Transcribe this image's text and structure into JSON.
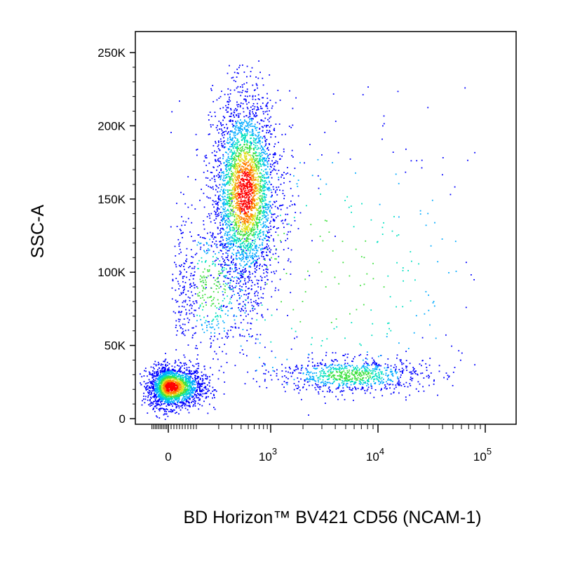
{
  "chart_data": {
    "type": "scatter",
    "style": "flow cytometry pseudocolor density dot plot",
    "xlabel": "BD Horizon™ BV421 CD56 (NCAM-1)",
    "ylabel": "SSC-A",
    "x_scale": "biexponential (linear near 0, log above ~10^2)",
    "y_scale": "linear",
    "xlim": [
      -150,
      250000
    ],
    "ylim": [
      0,
      262144
    ],
    "x_ticks": [
      {
        "value": 0,
        "label": "0"
      },
      {
        "value": 1000,
        "label": "10",
        "exp": "3"
      },
      {
        "value": 10000,
        "label": "10",
        "exp": "4"
      },
      {
        "value": 100000,
        "label": "10",
        "exp": "5"
      }
    ],
    "y_ticks": [
      {
        "value": 0,
        "label": "0"
      },
      {
        "value": 50000,
        "label": "50K"
      },
      {
        "value": 100000,
        "label": "100K"
      },
      {
        "value": 150000,
        "label": "150K"
      },
      {
        "value": 200000,
        "label": "200K"
      },
      {
        "value": 250000,
        "label": "250K"
      }
    ],
    "density_colors": [
      "#0000ff",
      "#00aaff",
      "#00e0c0",
      "#40e040",
      "#e0e020",
      "#ff8000",
      "#ff0000"
    ],
    "grid": false,
    "populations": [
      {
        "description": "CD56-negative low-SSC cluster",
        "x_center": 5,
        "y_center": 22000,
        "x_spread": 60,
        "y_spread": 7000,
        "relative_count": 0.3
      },
      {
        "description": "CD56-negative high-SSC cluster",
        "x_center": 450,
        "y_center": 155000,
        "x_spread": 0.22,
        "y_spread": 33000,
        "relative_count": 0.45
      },
      {
        "description": "CD56-positive low-SSC cluster",
        "x_center": 5500,
        "y_center": 30000,
        "x_spread": 0.35,
        "y_spread": 6000,
        "relative_count": 0.12
      },
      {
        "description": "bridge between low and high SSC",
        "x_center": 150,
        "y_center": 90000,
        "x_spread": 0.35,
        "y_spread": 25000,
        "relative_count": 0.08
      },
      {
        "description": "scattered events",
        "x_center": 3000,
        "y_center": 100000,
        "x_spread": 1.0,
        "y_spread": 60000,
        "relative_count": 0.05
      }
    ]
  }
}
